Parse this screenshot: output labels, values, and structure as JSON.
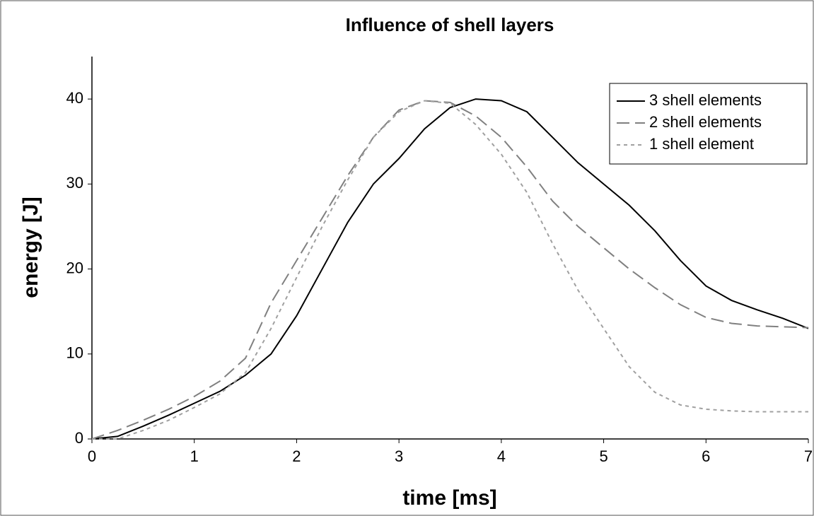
{
  "chart_data": {
    "type": "line",
    "title": "Influence of shell layers",
    "x_label": "time [ms]",
    "y_label": "energy [J]",
    "x": [
      0,
      0.25,
      0.5,
      0.75,
      1,
      1.25,
      1.5,
      1.75,
      2,
      2.25,
      2.5,
      2.75,
      3,
      3.25,
      3.5,
      3.75,
      4,
      4.25,
      4.5,
      4.75,
      5,
      5.25,
      5.5,
      5.75,
      6,
      6.25,
      6.5,
      6.75,
      7
    ],
    "series": [
      {
        "name": "3 shell elements",
        "color": "#000000",
        "line_style": "solid",
        "values": [
          0,
          0.3,
          1.5,
          2.8,
          4.2,
          5.6,
          7.5,
          10,
          14.5,
          20,
          25.5,
          30,
          33,
          36.5,
          39,
          40,
          39.8,
          38.5,
          35.5,
          32.5,
          30,
          27.5,
          24.5,
          21,
          18,
          16.3,
          15.2,
          14.2,
          13
        ]
      },
      {
        "name": "2 shell elements",
        "color": "#808080",
        "line_style": "dashed",
        "values": [
          0,
          1,
          2.2,
          3.5,
          5,
          6.8,
          9.5,
          16,
          21,
          26,
          31,
          35.5,
          38.7,
          39.8,
          39.6,
          38,
          35.5,
          32,
          28,
          25,
          22.5,
          20,
          17.8,
          15.8,
          14.3,
          13.6,
          13.3,
          13.2,
          13.1
        ]
      },
      {
        "name": "1 shell element",
        "color": "#a0a0a0",
        "line_style": "dotted",
        "values": [
          0,
          0,
          1,
          2.2,
          3.7,
          5.3,
          7.8,
          13,
          19,
          25,
          30.5,
          35.5,
          38.5,
          39.8,
          39.5,
          37,
          33.5,
          29,
          23,
          17.5,
          13,
          8.5,
          5.5,
          4,
          3.5,
          3.3,
          3.2,
          3.2,
          3.2
        ]
      }
    ],
    "xlim": [
      0,
      7
    ],
    "xticks": [
      0,
      1,
      2,
      3,
      4,
      5,
      6,
      7
    ],
    "ylim": [
      0,
      45
    ],
    "yticks": [
      0,
      10,
      20,
      30,
      40
    ],
    "legend": "upper right"
  }
}
